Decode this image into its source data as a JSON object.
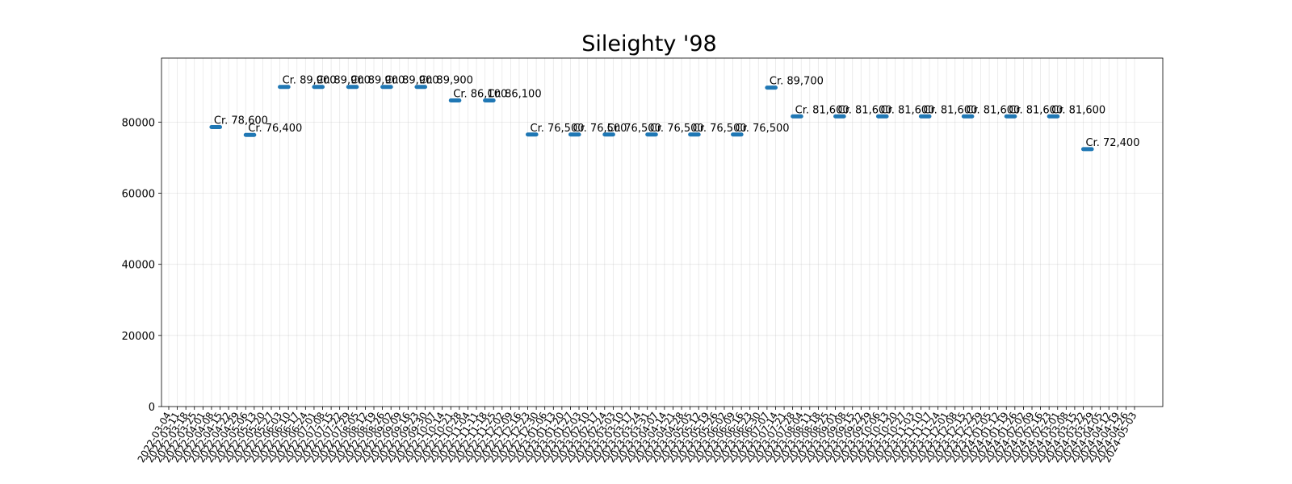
{
  "colors": {
    "series": "#1f77b4"
  },
  "chart_data": {
    "type": "line",
    "title": "Sileighty '98",
    "xlabel": "",
    "ylabel": "",
    "ylim": [
      0,
      98000
    ],
    "yticks": [
      0,
      20000,
      40000,
      60000,
      80000
    ],
    "grid": true,
    "x_ticks": [
      "2022-03-04",
      "2022-03-11",
      "2022-03-18",
      "2022-03-25",
      "2022-04-01",
      "2022-04-08",
      "2022-04-15",
      "2022-04-22",
      "2022-04-29",
      "2022-05-06",
      "2022-05-13",
      "2022-05-20",
      "2022-05-27",
      "2022-06-03",
      "2022-06-10",
      "2022-06-17",
      "2022-06-24",
      "2022-07-01",
      "2022-07-08",
      "2022-07-15",
      "2022-07-22",
      "2022-07-29",
      "2022-08-05",
      "2022-08-12",
      "2022-08-19",
      "2022-08-26",
      "2022-09-02",
      "2022-09-09",
      "2022-09-16",
      "2022-09-23",
      "2022-09-30",
      "2022-10-07",
      "2022-10-14",
      "2022-10-21",
      "2022-10-28",
      "2022-11-04",
      "2022-11-11",
      "2022-11-18",
      "2022-11-25",
      "2022-12-02",
      "2022-12-09",
      "2022-12-16",
      "2022-12-23",
      "2022-12-30",
      "2023-01-06",
      "2023-01-13",
      "2023-01-20",
      "2023-01-27",
      "2023-02-03",
      "2023-02-10",
      "2023-02-17",
      "2023-02-24",
      "2023-03-03",
      "2023-03-10",
      "2023-03-17",
      "2023-03-24",
      "2023-03-31",
      "2023-04-07",
      "2023-04-14",
      "2023-04-21",
      "2023-04-28",
      "2023-05-05",
      "2023-05-12",
      "2023-05-19",
      "2023-05-26",
      "2023-06-02",
      "2023-06-09",
      "2023-06-16",
      "2023-06-23",
      "2023-06-30",
      "2023-07-07",
      "2023-07-14",
      "2023-07-21",
      "2023-07-28",
      "2023-08-04",
      "2023-08-11",
      "2023-08-18",
      "2023-08-25",
      "2023-09-01",
      "2023-09-08",
      "2023-09-15",
      "2023-09-22",
      "2023-09-29",
      "2023-10-06",
      "2023-10-13",
      "2023-10-20",
      "2023-10-27",
      "2023-11-03",
      "2023-11-10",
      "2023-11-17",
      "2023-11-24",
      "2023-12-01",
      "2023-12-08",
      "2023-12-15",
      "2023-12-22",
      "2023-12-29",
      "2024-01-05",
      "2024-01-12",
      "2024-01-19",
      "2024-01-26",
      "2024-02-02",
      "2024-02-09",
      "2024-02-16",
      "2024-02-23",
      "2024-03-01",
      "2024-03-08",
      "2024-03-15",
      "2024-03-22",
      "2024-03-29",
      "2024-04-05",
      "2024-04-12",
      "2024-04-19",
      "2024-04-26",
      "2024-05-03"
    ],
    "segments": [
      {
        "start": "2022-04-08",
        "end": "2022-04-15",
        "value": 78600,
        "label": "Cr. 78,600"
      },
      {
        "start": "2022-05-06",
        "end": "2022-05-13",
        "value": 76400,
        "label": "Cr. 76,400"
      },
      {
        "start": "2022-06-03",
        "end": "2022-06-10",
        "value": 89900,
        "label": "Cr. 89,900"
      },
      {
        "start": "2022-07-01",
        "end": "2022-07-08",
        "value": 89900,
        "label": "Cr. 89,900"
      },
      {
        "start": "2022-07-29",
        "end": "2022-08-05",
        "value": 89900,
        "label": "Cr. 89,900"
      },
      {
        "start": "2022-08-26",
        "end": "2022-09-02",
        "value": 89900,
        "label": "Cr. 89,900"
      },
      {
        "start": "2022-09-23",
        "end": "2022-09-30",
        "value": 89900,
        "label": "Cr. 89,900"
      },
      {
        "start": "2022-10-21",
        "end": "2022-10-28",
        "value": 86100,
        "label": "Cr. 86,100"
      },
      {
        "start": "2022-11-18",
        "end": "2022-11-25",
        "value": 86100,
        "label": "Cr. 86,100"
      },
      {
        "start": "2022-12-23",
        "end": "2022-12-30",
        "value": 76500,
        "label": "Cr. 76,500"
      },
      {
        "start": "2023-01-27",
        "end": "2023-02-03",
        "value": 76500,
        "label": "Cr. 76,500"
      },
      {
        "start": "2023-02-24",
        "end": "2023-03-03",
        "value": 76500,
        "label": "Cr. 76,500"
      },
      {
        "start": "2023-03-31",
        "end": "2023-04-07",
        "value": 76500,
        "label": "Cr. 76,500"
      },
      {
        "start": "2023-05-05",
        "end": "2023-05-12",
        "value": 76500,
        "label": "Cr. 76,500"
      },
      {
        "start": "2023-06-09",
        "end": "2023-06-16",
        "value": 76500,
        "label": "Cr. 76,500"
      },
      {
        "start": "2023-07-07",
        "end": "2023-07-14",
        "value": 89700,
        "label": "Cr. 89,700"
      },
      {
        "start": "2023-07-28",
        "end": "2023-08-04",
        "value": 81600,
        "label": "Cr. 81,600"
      },
      {
        "start": "2023-09-01",
        "end": "2023-09-08",
        "value": 81600,
        "label": "Cr. 81,600"
      },
      {
        "start": "2023-10-06",
        "end": "2023-10-13",
        "value": 81600,
        "label": "Cr. 81,600"
      },
      {
        "start": "2023-11-10",
        "end": "2023-11-17",
        "value": 81600,
        "label": "Cr. 81,600"
      },
      {
        "start": "2023-12-15",
        "end": "2023-12-22",
        "value": 81600,
        "label": "Cr. 81,600"
      },
      {
        "start": "2024-01-19",
        "end": "2024-01-26",
        "value": 81600,
        "label": "Cr. 81,600"
      },
      {
        "start": "2024-02-23",
        "end": "2024-03-01",
        "value": 81600,
        "label": "Cr. 81,600"
      },
      {
        "start": "2024-03-22",
        "end": "2024-03-29",
        "value": 72400,
        "label": "Cr. 72,400"
      }
    ]
  }
}
